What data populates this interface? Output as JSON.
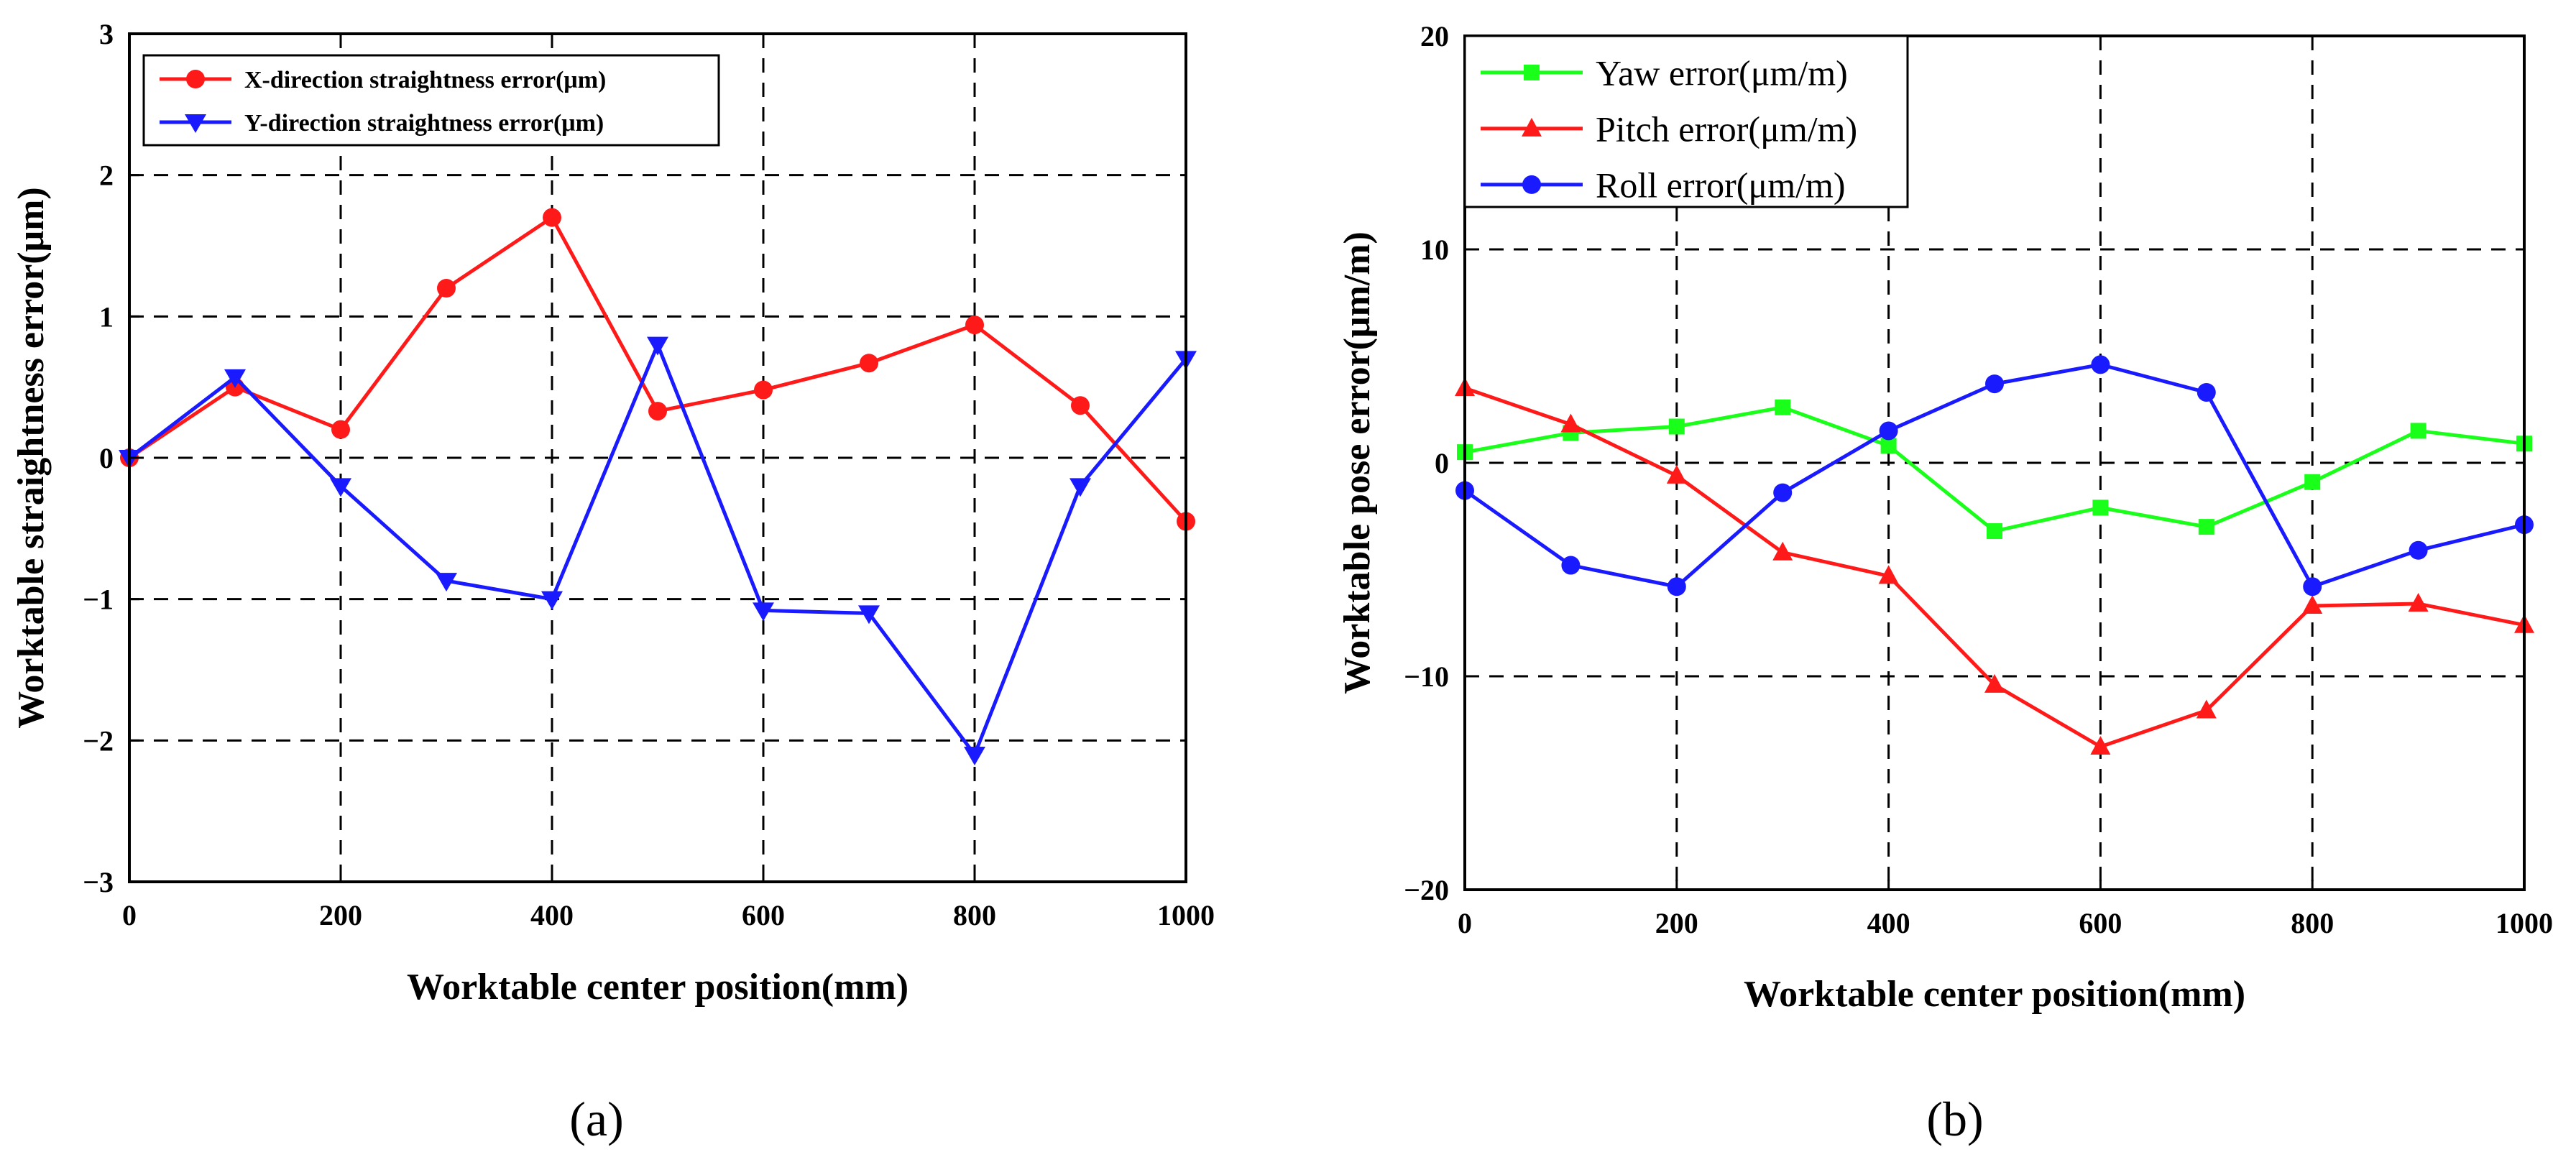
{
  "figure": {
    "panel_labels": [
      "(a)",
      "(b)"
    ]
  },
  "chart_data": [
    {
      "type": "line",
      "panel": "(a)",
      "xlabel": "Worktable center position(mm)",
      "ylabel": "Worktable straightness error(μm)",
      "xlim": [
        0,
        1000
      ],
      "ylim": [
        -3,
        3
      ],
      "xticks": [
        0,
        200,
        400,
        600,
        800,
        1000
      ],
      "yticks": [
        -3,
        -2,
        -1,
        0,
        1,
        2,
        3
      ],
      "grid": true,
      "legend_position": "top-left",
      "x": [
        0,
        100,
        200,
        300,
        400,
        500,
        600,
        700,
        800,
        900,
        1000
      ],
      "series": [
        {
          "name": "X-direction straightness error(μm)",
          "color": "#ff1a1a",
          "marker": "circle",
          "values": [
            0,
            0.5,
            0.2,
            1.2,
            1.7,
            0.33,
            0.48,
            0.67,
            0.94,
            0.37,
            -0.45
          ]
        },
        {
          "name": "Y-direction straightness error(μm)",
          "color": "#1a1aff",
          "marker": "triangle-down",
          "values": [
            0,
            0.57,
            -0.2,
            -0.87,
            -1.0,
            0.8,
            -1.08,
            -1.1,
            -2.1,
            -0.2,
            0.7
          ]
        }
      ]
    },
    {
      "type": "line",
      "panel": "(b)",
      "xlabel": "Worktable center position(mm)",
      "ylabel": "Worktable pose error(μm/m)",
      "xlim": [
        0,
        1000
      ],
      "ylim": [
        -20,
        20
      ],
      "xticks": [
        0,
        200,
        400,
        600,
        800,
        1000
      ],
      "yticks": [
        -20,
        -10,
        0,
        10,
        20
      ],
      "grid": true,
      "legend_position": "top-left",
      "x": [
        0,
        100,
        200,
        300,
        400,
        500,
        600,
        700,
        800,
        900,
        1000
      ],
      "series": [
        {
          "name": "Yaw error(μm/m)",
          "color": "#1aff1a",
          "marker": "square",
          "values": [
            0.5,
            1.4,
            1.7,
            2.6,
            0.8,
            -3.2,
            -2.1,
            -3.0,
            -0.9,
            1.5,
            0.9
          ]
        },
        {
          "name": "Pitch error(μm/m)",
          "color": "#ff1a1a",
          "marker": "triangle-up",
          "values": [
            3.5,
            1.8,
            -0.6,
            -4.2,
            -5.3,
            -10.4,
            -13.3,
            -11.6,
            -6.7,
            -6.6,
            -7.6
          ]
        },
        {
          "name": "Roll error(μm/m)",
          "color": "#1a1aff",
          "marker": "circle",
          "values": [
            -1.3,
            -4.8,
            -5.8,
            -1.4,
            1.5,
            3.7,
            4.6,
            3.3,
            -5.8,
            -4.1,
            -2.9
          ]
        }
      ]
    }
  ]
}
